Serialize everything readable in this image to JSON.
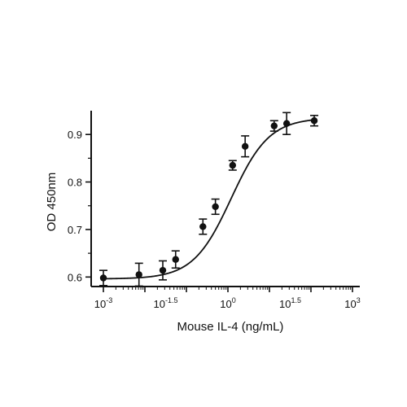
{
  "chart_data": {
    "type": "scatter",
    "title": "",
    "xlabel": "Mouse IL-4 (ng/mL)",
    "ylabel": "OD 450nm",
    "x_scale": "log10",
    "xlim": [
      0.001,
      1000
    ],
    "ylim": [
      0.58,
      0.95
    ],
    "x_ticks": [
      {
        "value": 0.001,
        "base": "10",
        "exp": "-3"
      },
      {
        "value": 0.0316,
        "base": "10",
        "exp": "-1.5"
      },
      {
        "value": 1,
        "base": "10",
        "exp": "0"
      },
      {
        "value": 31.6,
        "base": "10",
        "exp": "1.5"
      },
      {
        "value": 1000,
        "base": "10",
        "exp": "3"
      }
    ],
    "y_ticks": [
      {
        "value": 0.6,
        "label": "0.6"
      },
      {
        "value": 0.7,
        "label": "0.7"
      },
      {
        "value": 0.8,
        "label": "0.8"
      },
      {
        "value": 0.9,
        "label": "0.9"
      }
    ],
    "grid": false,
    "legend": "none",
    "series": [
      {
        "x": [
          0.001,
          0.0072,
          0.027,
          0.055,
          0.25,
          0.5,
          1.3,
          2.6,
          13,
          26,
          120
        ],
        "y": [
          0.598,
          0.605,
          0.614,
          0.637,
          0.706,
          0.748,
          0.835,
          0.875,
          0.918,
          0.923,
          0.929
        ],
        "err": [
          0.016,
          0.024,
          0.02,
          0.018,
          0.016,
          0.016,
          0.01,
          0.022,
          0.011,
          0.023,
          0.011
        ],
        "color": "#111111"
      }
    ],
    "fit": {
      "model": "4PL",
      "bottom": 0.596,
      "top": 0.935,
      "ec50": 1.2,
      "hill": 0.95
    }
  }
}
